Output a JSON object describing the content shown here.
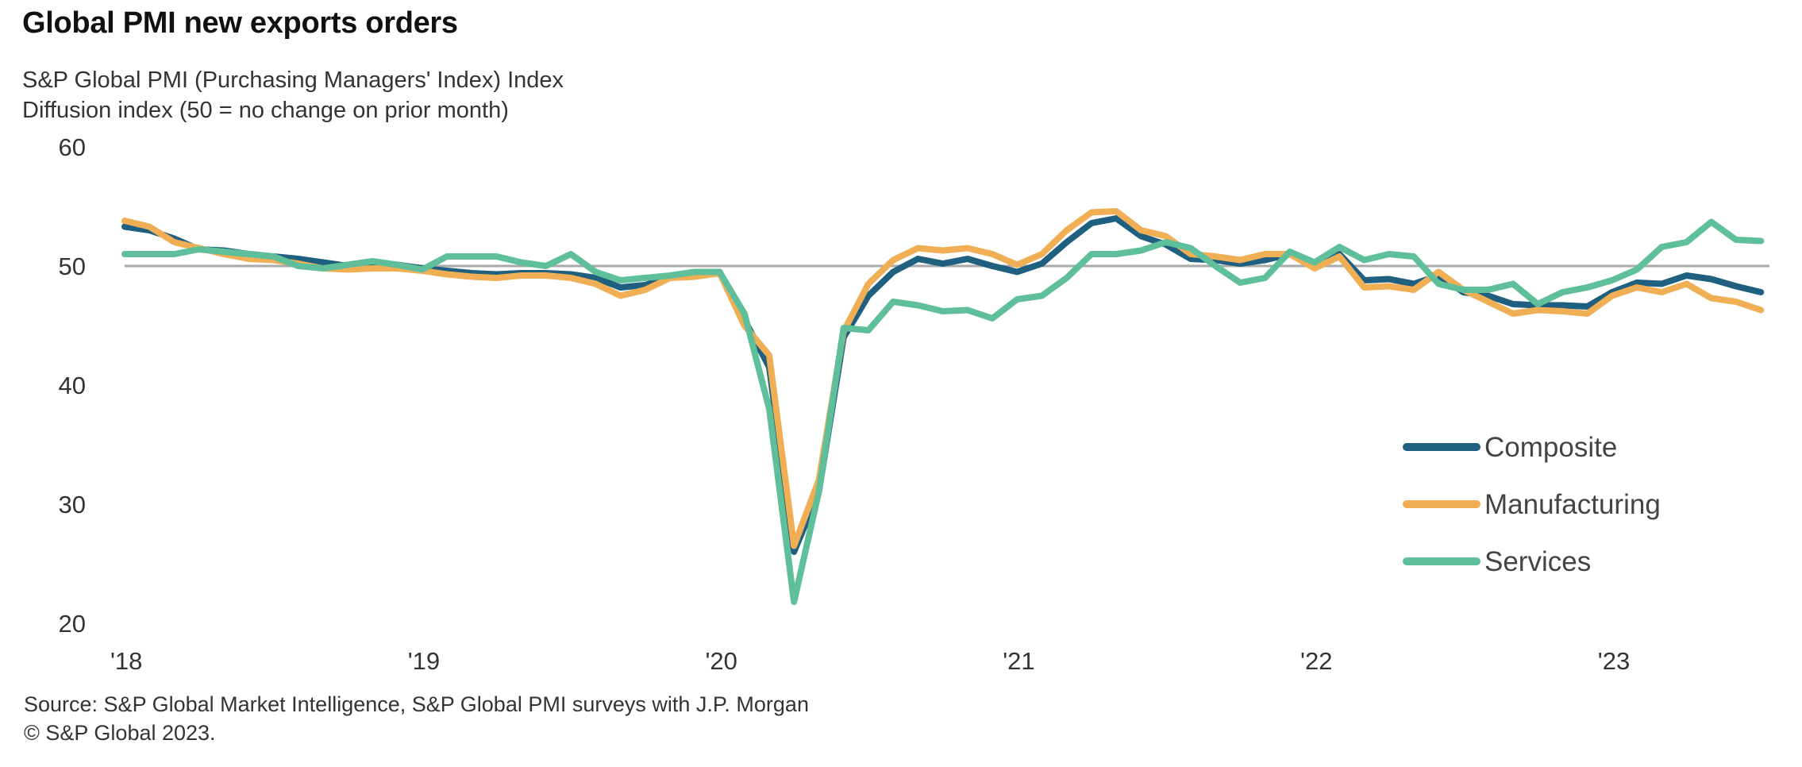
{
  "header": {
    "title": "Global PMI new exports orders",
    "subtitle_line1": "S&P Global  PMI (Purchasing Managers' Index) Index",
    "subtitle_line2": "Diffusion index  (50 = no change on prior month)"
  },
  "footer": {
    "source": "Source: S&P Global Market Intelligence,  S&P Global PMI  surveys with J.P. Morgan",
    "copyright": "© S&P Global 2023."
  },
  "chart_data": {
    "type": "line",
    "title": "Global PMI new exports orders",
    "xlabel": "",
    "ylabel": "Diffusion index (50 = no change on prior month)",
    "ylim": [
      20,
      60
    ],
    "yticks": [
      "60",
      "50",
      "40",
      "30",
      "20"
    ],
    "ytick_values": [
      60,
      50,
      40,
      30,
      20
    ],
    "xtick_labels": [
      "'18",
      "'19",
      "'20",
      "'21",
      "'22",
      "'23"
    ],
    "x_start": "2018-01",
    "x_end": "2023-07",
    "frequency": "monthly",
    "reference_line": 50,
    "grid": false,
    "legend_position": "bottom-right",
    "series": [
      {
        "name": "Composite",
        "color": "#1f5f7f",
        "values": [
          53.3,
          53.0,
          52.3,
          51.4,
          51.3,
          51.0,
          50.8,
          50.6,
          50.3,
          50.0,
          49.9,
          50.1,
          49.8,
          49.6,
          49.4,
          49.3,
          49.4,
          49.4,
          49.3,
          49.0,
          48.2,
          48.4,
          49.0,
          49.3,
          49.5,
          45.5,
          41.5,
          26.0,
          31.0,
          44.0,
          47.5,
          49.5,
          50.6,
          50.2,
          50.6,
          50.0,
          49.5,
          50.2,
          52.0,
          53.6,
          54.0,
          52.5,
          51.8,
          50.6,
          50.5,
          50.2,
          50.5,
          51.0,
          50.2,
          51.0,
          48.8,
          48.9,
          48.5,
          49.2,
          47.8,
          47.5,
          46.8,
          46.7,
          46.7,
          46.6,
          47.8,
          48.6,
          48.5,
          49.2,
          48.9,
          48.3,
          47.8
        ]
      },
      {
        "name": "Manufacturing",
        "color": "#f0ae55",
        "values": [
          53.8,
          53.3,
          52.0,
          51.5,
          51.0,
          50.6,
          50.5,
          50.2,
          49.8,
          49.7,
          49.8,
          49.8,
          49.6,
          49.3,
          49.1,
          49.0,
          49.2,
          49.2,
          49.0,
          48.5,
          47.5,
          48.0,
          49.0,
          49.1,
          49.4,
          45.0,
          42.5,
          26.5,
          32.0,
          44.5,
          48.5,
          50.5,
          51.5,
          51.3,
          51.5,
          51.0,
          50.1,
          51.0,
          53.0,
          54.5,
          54.6,
          53.0,
          52.5,
          51.0,
          50.8,
          50.5,
          51.0,
          51.0,
          49.8,
          50.8,
          48.2,
          48.3,
          48.0,
          49.5,
          48.0,
          47.0,
          46.0,
          46.3,
          46.2,
          46.0,
          47.5,
          48.2,
          47.8,
          48.5,
          47.3,
          47.0,
          46.3
        ]
      },
      {
        "name": "Services",
        "color": "#5fbf9a",
        "values": [
          51.0,
          51.0,
          51.0,
          51.4,
          51.2,
          51.0,
          50.8,
          50.0,
          49.8,
          50.1,
          50.4,
          50.1,
          49.7,
          50.8,
          50.8,
          50.8,
          50.3,
          50.0,
          51.0,
          49.5,
          48.8,
          49.0,
          49.2,
          49.5,
          49.5,
          46.0,
          38.0,
          21.8,
          31.0,
          44.8,
          44.6,
          47.0,
          46.7,
          46.2,
          46.3,
          45.6,
          47.2,
          47.5,
          49.0,
          51.0,
          51.0,
          51.3,
          52.0,
          51.5,
          50.0,
          48.6,
          49.0,
          51.2,
          50.3,
          51.6,
          50.5,
          51.0,
          50.8,
          48.5,
          48.0,
          48.0,
          48.5,
          46.8,
          47.8,
          48.2,
          48.8,
          49.7,
          51.6,
          52.0,
          53.7,
          52.2,
          52.1
        ]
      }
    ]
  }
}
